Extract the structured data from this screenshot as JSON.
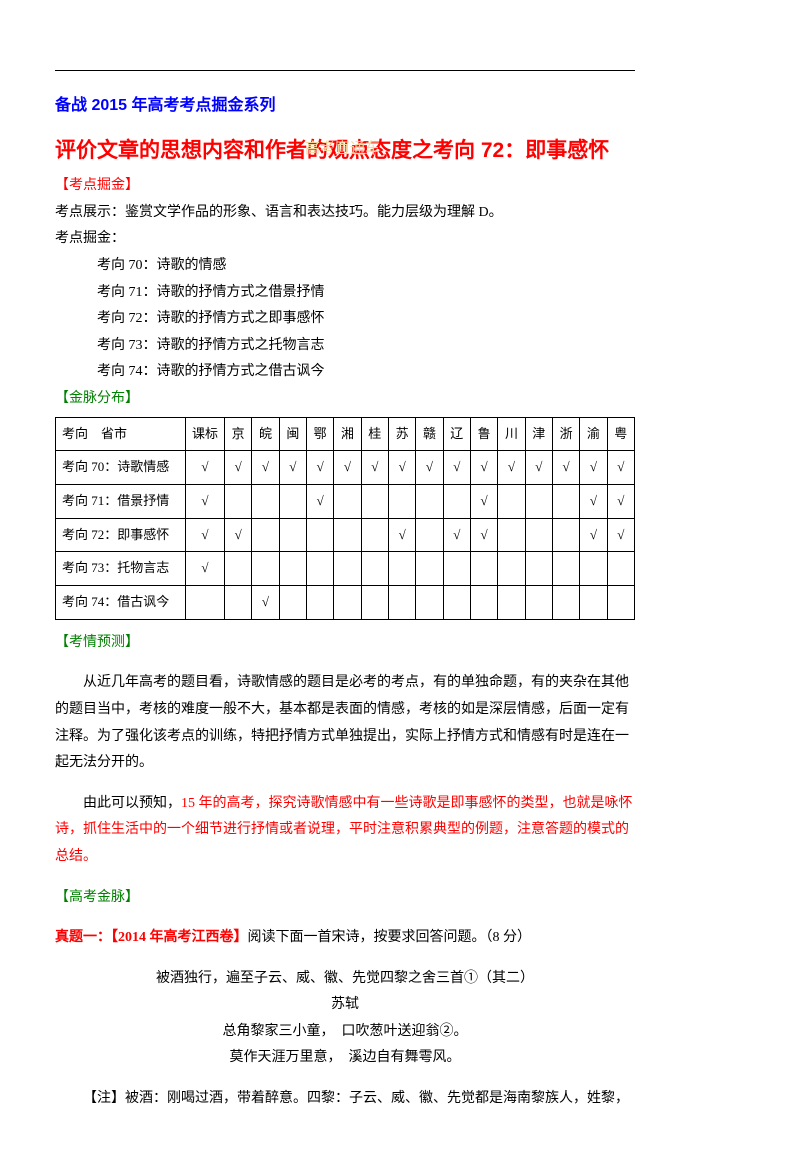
{
  "series_title": "备战 2015 年高考考点掘金系列",
  "big_red_title": "评价文章的思想内容和作者的观点态度之考向 72：即事感怀",
  "watermark": "高考直通车",
  "labels": {
    "kaodian_wajin": "【考点掘金】",
    "jinmai_fenbu": "【金脉分布】",
    "kaoqing_yuce": "【考情预测】",
    "gaokao_jinmai": "【高考金脉】"
  },
  "kaodian_zhanshi": "考点展示：鉴赏文学作品的形象、语言和表达技巧。能力层级为理解 D。",
  "kaodian_wajin_label": "考点掘金：",
  "kaoxiang": [
    "考向 70：诗歌的情感",
    "考向 71：诗歌的抒情方式之借景抒情",
    "考向 72：诗歌的抒情方式之即事感怀",
    "考向 73：诗歌的抒情方式之托物言志",
    "考向 74：诗歌的抒情方式之借古讽今"
  ],
  "table": {
    "header_left": "考向　省市",
    "provinces": [
      "课标",
      "京",
      "皖",
      "闽",
      "鄂",
      "湘",
      "桂",
      "苏",
      "赣",
      "辽",
      "鲁",
      "川",
      "津",
      "浙",
      "渝",
      "粤"
    ],
    "rows": [
      {
        "label": "考向 70：诗歌情感",
        "cells": [
          "√",
          "√",
          "√",
          "√",
          "√",
          "√",
          "√",
          "√",
          "√",
          "√",
          "√",
          "√",
          "√",
          "√",
          "√",
          "√"
        ]
      },
      {
        "label": "考向 71：借景抒情",
        "cells": [
          "√",
          "",
          "",
          "",
          "√",
          "",
          "",
          "",
          "",
          "",
          "√",
          "",
          "",
          "",
          "√",
          "√"
        ]
      },
      {
        "label": "考向 72：即事感怀",
        "cells": [
          "√",
          "√",
          "",
          "",
          "",
          "",
          "",
          "√",
          "",
          "√",
          "√",
          "",
          "",
          "",
          "√",
          "√"
        ]
      },
      {
        "label": "考向 73：托物言志",
        "cells": [
          "√",
          "",
          "",
          "",
          "",
          "",
          "",
          "",
          "",
          "",
          "",
          "",
          "",
          "",
          "",
          ""
        ]
      },
      {
        "label": "考向 74：借古讽今",
        "cells": [
          "",
          "",
          "√",
          "",
          "",
          "",
          "",
          "",
          "",
          "",
          "",
          "",
          "",
          "",
          "",
          ""
        ]
      }
    ]
  },
  "prediction": {
    "p1": "从近几年高考的题目看，诗歌情感的题目是必考的考点，有的单独命题，有的夹杂在其他的题目当中，考核的难度一般不大，基本都是表面的情感，考核的如是深层情感，后面一定有注释。为了强化该考点的训练，特把抒情方式单独提出，实际上抒情方式和情感有时是连在一起无法分开的。",
    "p2_prefix": "由此可以预知，",
    "p2_highlight": "15 年的高考，探究诗歌情感中有一些诗歌是即事感怀的类型，也就是咏怀诗，抓住生活中的一个细节进行抒情或者说理，平时注意积累典型的例题，注意答题的模式的总结。"
  },
  "zhenti": {
    "prefix": "真题一：",
    "source": "【2014 年高考江西卷】",
    "instruction": "阅读下面一首宋诗，按要求回答问题。（8 分）",
    "poem_title": "被酒独行，遍至子云、威、徽、先觉四黎之舍三首①（其二）",
    "author": "苏轼",
    "line1": "总角黎家三小童，　口吹葱叶送迎翁②。",
    "line2": "莫作天涯万里意，　溪边自有舞雩风。",
    "note_label": "【注】",
    "note_text": "被酒：刚喝过酒，带着醉意。四黎：子云、威、徽、先觉都是海南黎族人，姓黎，"
  }
}
